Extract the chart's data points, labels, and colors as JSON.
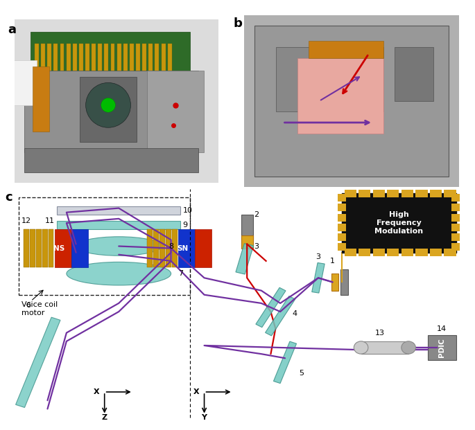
{
  "panel_a_label": "a",
  "panel_b_label": "b",
  "panel_c_label": "c",
  "hfm_lines": [
    "High",
    "Frequency",
    "Modulation"
  ],
  "pdic_label": "PDIC",
  "vcm_label": "Voice coil\nmotor",
  "purple": "#7030A0",
  "red": "#CC0000",
  "teal": "#70C8C0",
  "teal_dark": "#3A9088",
  "gold": "#DAA520",
  "dark_gold": "#B07010",
  "hfm_bg": "#111111",
  "hfm_border": "#DAA520",
  "ns_red": "#CC2200",
  "ns_blue": "#1133CC",
  "coil_gold": "#C8960C",
  "gray_elem": "#909090",
  "gray_dark": "#505050",
  "white": "#FFFFFF",
  "label_fontsize": 13
}
